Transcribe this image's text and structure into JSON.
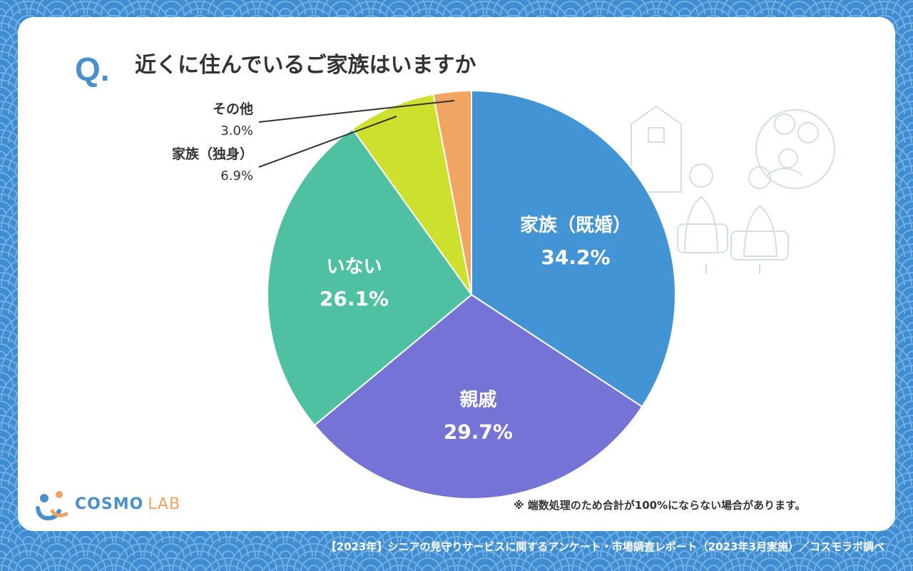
{
  "question": {
    "mark": "Q.",
    "title": "近くに住んでいるご家族はいますか"
  },
  "chart_data": {
    "type": "pie",
    "slices": [
      {
        "label": "家族（既婚）",
        "value": 34.2,
        "display": "34.2%",
        "color": "#4294d4",
        "label_inside": true
      },
      {
        "label": "親戚",
        "value": 29.7,
        "display": "29.7%",
        "color": "#7673d6",
        "label_inside": true
      },
      {
        "label": "いない",
        "value": 26.1,
        "display": "26.1%",
        "color": "#50c0a2",
        "label_inside": true
      },
      {
        "label": "家族（独身）",
        "value": 6.9,
        "display": "6.9%",
        "color": "#cde02e",
        "label_inside": false
      },
      {
        "label": "その他",
        "value": 3.0,
        "display": "3.0%",
        "color": "#f0a562",
        "label_inside": false
      }
    ]
  },
  "note": "※ 端数処理のため合計が100%にならない場合があります。",
  "logo": {
    "word1": "COSMO",
    "word2": "LAB"
  },
  "footer": "【2023年】シニアの見守りサービスに関するアンケート・市場調査レポート（2023年3月実施）／コスモラボ調べ",
  "colors": {
    "background": "#3f8dd0",
    "wave": "#72b0e3",
    "card": "#ffffff",
    "accent": "#4a8fcb"
  }
}
